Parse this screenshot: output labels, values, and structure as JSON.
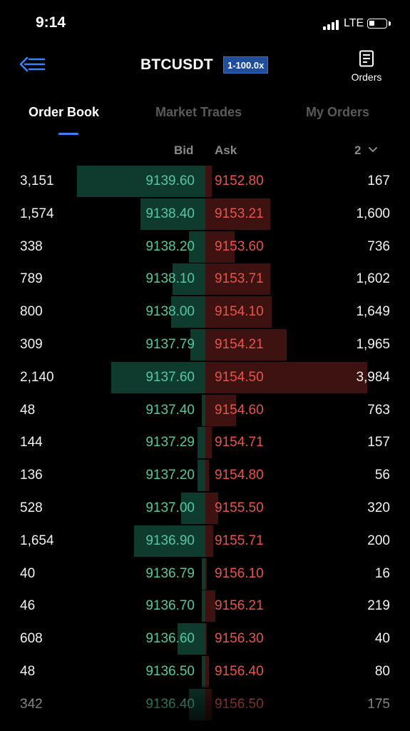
{
  "status": {
    "time": "9:14",
    "network": "LTE",
    "battery_level": 0.35
  },
  "header": {
    "title": "BTCUSDT",
    "leverage": "1-100.0x",
    "orders_label": "Orders",
    "back_icon": "back-menu-icon",
    "orders_icon": "document-icon"
  },
  "tabs": [
    {
      "label": "Order Book",
      "active": true
    },
    {
      "label": "Market Trades",
      "active": false
    },
    {
      "label": "My Orders",
      "active": false
    }
  ],
  "columns": {
    "bid": "Bid",
    "ask": "Ask",
    "precision": "2"
  },
  "colors": {
    "bid": "#52c9a0",
    "ask": "#e8544a",
    "bid_depth": "#0f3a2e",
    "ask_depth": "#3d1210",
    "accent": "#3b82f6"
  },
  "rows": [
    {
      "bid_qty": "3,151",
      "bid_price": "9139.60",
      "ask_price": "9152.80",
      "ask_qty": "167",
      "bid_depth": 0.79,
      "ask_depth": 0.04
    },
    {
      "bid_qty": "1,574",
      "bid_price": "9138.40",
      "ask_price": "9153.21",
      "ask_qty": "1,600",
      "bid_depth": 0.4,
      "ask_depth": 0.4
    },
    {
      "bid_qty": "338",
      "bid_price": "9138.20",
      "ask_price": "9153.60",
      "ask_qty": "736",
      "bid_depth": 0.1,
      "ask_depth": 0.18
    },
    {
      "bid_qty": "789",
      "bid_price": "9138.10",
      "ask_price": "9153.71",
      "ask_qty": "1,602",
      "bid_depth": 0.2,
      "ask_depth": 0.4
    },
    {
      "bid_qty": "800",
      "bid_price": "9138.00",
      "ask_price": "9154.10",
      "ask_qty": "1,649",
      "bid_depth": 0.21,
      "ask_depth": 0.41
    },
    {
      "bid_qty": "309",
      "bid_price": "9137.79",
      "ask_price": "9154.21",
      "ask_qty": "1,965",
      "bid_depth": 0.09,
      "ask_depth": 0.5
    },
    {
      "bid_qty": "2,140",
      "bid_price": "9137.60",
      "ask_price": "9154.50",
      "ask_qty": "3,984",
      "bid_depth": 0.58,
      "ask_depth": 1.0
    },
    {
      "bid_qty": "48",
      "bid_price": "9137.40",
      "ask_price": "9154.60",
      "ask_qty": "763",
      "bid_depth": 0.02,
      "ask_depth": 0.19
    },
    {
      "bid_qty": "144",
      "bid_price": "9137.29",
      "ask_price": "9154.71",
      "ask_qty": "157",
      "bid_depth": 0.05,
      "ask_depth": 0.04
    },
    {
      "bid_qty": "136",
      "bid_price": "9137.20",
      "ask_price": "9154.80",
      "ask_qty": "56",
      "bid_depth": 0.05,
      "ask_depth": 0.02
    },
    {
      "bid_qty": "528",
      "bid_price": "9137.00",
      "ask_price": "9155.50",
      "ask_qty": "320",
      "bid_depth": 0.15,
      "ask_depth": 0.08
    },
    {
      "bid_qty": "1,654",
      "bid_price": "9136.90",
      "ask_price": "9155.71",
      "ask_qty": "200",
      "bid_depth": 0.44,
      "ask_depth": 0.05
    },
    {
      "bid_qty": "40",
      "bid_price": "9136.79",
      "ask_price": "9156.10",
      "ask_qty": "16",
      "bid_depth": 0.02,
      "ask_depth": 0.01
    },
    {
      "bid_qty": "46",
      "bid_price": "9136.70",
      "ask_price": "9156.21",
      "ask_qty": "219",
      "bid_depth": 0.02,
      "ask_depth": 0.06
    },
    {
      "bid_qty": "608",
      "bid_price": "9136.60",
      "ask_price": "9156.30",
      "ask_qty": "40",
      "bid_depth": 0.17,
      "ask_depth": 0.01
    },
    {
      "bid_qty": "48",
      "bid_price": "9136.50",
      "ask_price": "9156.40",
      "ask_qty": "80",
      "bid_depth": 0.02,
      "ask_depth": 0.02
    },
    {
      "bid_qty": "342",
      "bid_price": "9136.40",
      "ask_price": "9156.50",
      "ask_qty": "175",
      "bid_depth": 0.1,
      "ask_depth": 0.04
    }
  ]
}
